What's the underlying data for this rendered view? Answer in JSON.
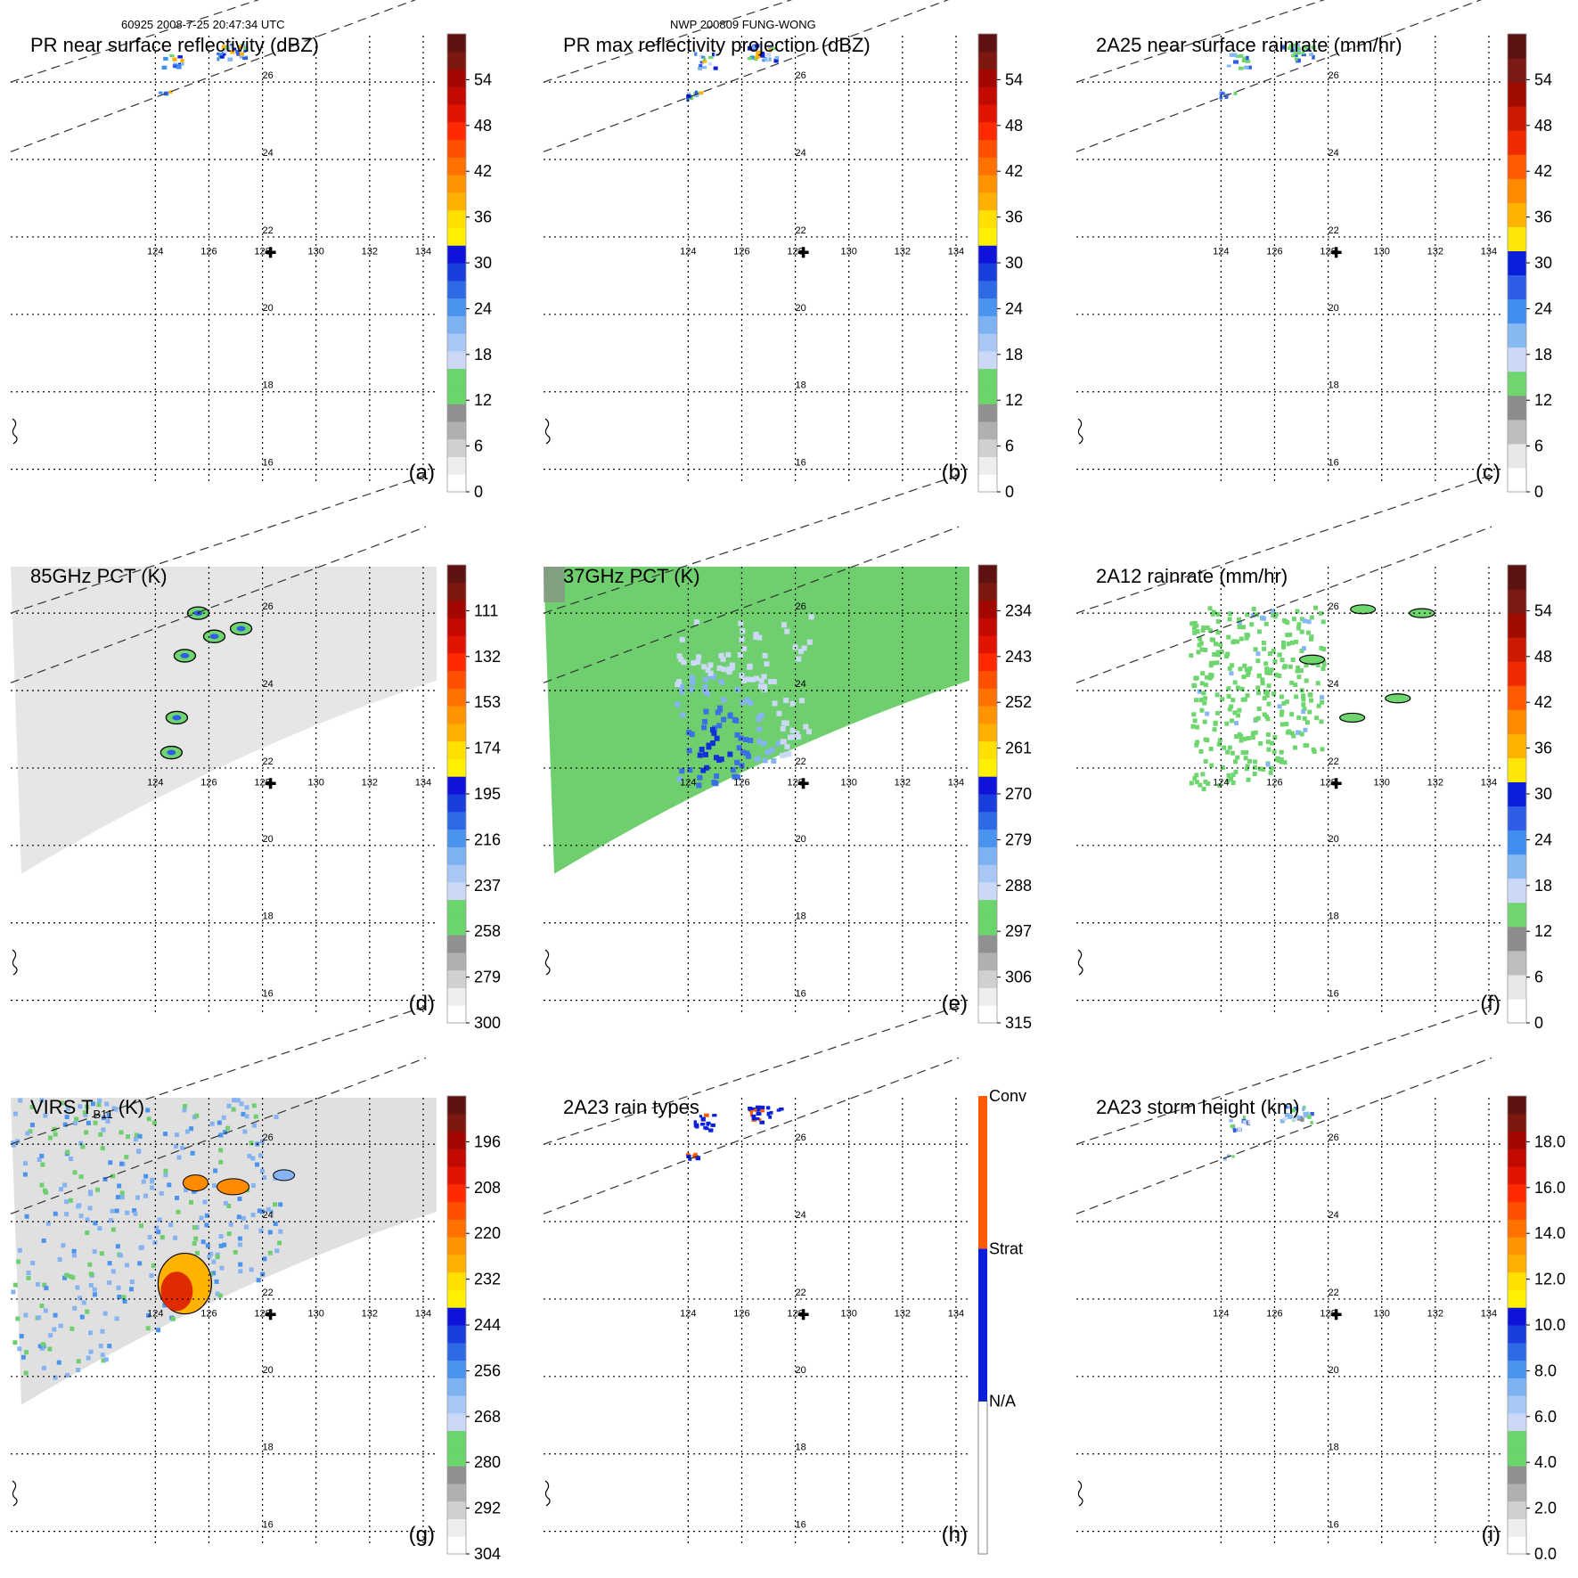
{
  "header": {
    "left": "60925 2008-7-25 20:47:34 UTC",
    "center": "NWP 200809 FUNG-WONG"
  },
  "map": {
    "lon_ticks": [
      "124",
      "126",
      "128",
      "130",
      "132",
      "134"
    ],
    "lat_ticks": [
      "26",
      "24",
      "22",
      "20",
      "18",
      "16"
    ]
  },
  "chart_data": [
    {
      "type": "heatmap",
      "panel": "(a)",
      "title": "PR near surface reflectivity (dBZ)",
      "colorbar": {
        "ticks": [
          "0",
          "6",
          "12",
          "18",
          "24",
          "30",
          "36",
          "42",
          "48",
          "54"
        ],
        "range": [
          0,
          60
        ],
        "unit": "dBZ"
      },
      "extent": {
        "lon": [
          118,
          134
        ],
        "lat": [
          16,
          27
        ]
      }
    },
    {
      "type": "heatmap",
      "panel": "(b)",
      "title": "PR max reflectivity projection (dBZ)",
      "colorbar": {
        "ticks": [
          "0",
          "6",
          "12",
          "18",
          "24",
          "30",
          "36",
          "42",
          "48",
          "54"
        ],
        "range": [
          0,
          60
        ],
        "unit": "dBZ"
      },
      "extent": {
        "lon": [
          118,
          134
        ],
        "lat": [
          16,
          27
        ]
      }
    },
    {
      "type": "heatmap",
      "panel": "(c)",
      "title": "2A25 near surface rainrate (mm/hr)",
      "colorbar": {
        "ticks": [
          "0",
          "6",
          "12",
          "18",
          "24",
          "30",
          "36",
          "42",
          "48",
          "54"
        ],
        "range": [
          0,
          60
        ],
        "unit": "mm/hr"
      },
      "extent": {
        "lon": [
          118,
          134
        ],
        "lat": [
          16,
          27
        ]
      }
    },
    {
      "type": "heatmap",
      "panel": "(d)",
      "title": "85GHz PCT (K)",
      "colorbar": {
        "ticks": [
          "300",
          "279",
          "258",
          "237",
          "216",
          "195",
          "174",
          "153",
          "132",
          "111"
        ],
        "range": [
          300,
          90
        ],
        "unit": "K"
      },
      "extent": {
        "lon": [
          118,
          134
        ],
        "lat": [
          16,
          27
        ]
      }
    },
    {
      "type": "heatmap",
      "panel": "(e)",
      "title": "37GHz PCT (K)",
      "colorbar": {
        "ticks": [
          "315",
          "306",
          "297",
          "288",
          "279",
          "270",
          "261",
          "252",
          "243",
          "234"
        ],
        "range": [
          315,
          225
        ],
        "unit": "K"
      },
      "extent": {
        "lon": [
          118,
          134
        ],
        "lat": [
          16,
          27
        ]
      }
    },
    {
      "type": "heatmap",
      "panel": "(f)",
      "title": "2A12 rainrate (mm/hr)",
      "colorbar": {
        "ticks": [
          "0",
          "6",
          "12",
          "18",
          "24",
          "30",
          "36",
          "42",
          "48",
          "54"
        ],
        "range": [
          0,
          60
        ],
        "unit": "mm/hr"
      },
      "extent": {
        "lon": [
          118,
          134
        ],
        "lat": [
          16,
          27
        ]
      }
    },
    {
      "type": "heatmap",
      "panel": "(g)",
      "title": "VIRS T",
      "title_sub": "B11",
      "title_unit": " (K)",
      "colorbar": {
        "ticks": [
          "304",
          "292",
          "280",
          "268",
          "256",
          "244",
          "232",
          "220",
          "208",
          "196"
        ],
        "range": [
          304,
          184
        ],
        "unit": "K"
      },
      "extent": {
        "lon": [
          118,
          134
        ],
        "lat": [
          16,
          27
        ]
      }
    },
    {
      "type": "heatmap",
      "panel": "(h)",
      "title": "2A23 rain types",
      "colorbar": {
        "categories": [
          "N/A",
          "Strat",
          "Conv"
        ]
      },
      "extent": {
        "lon": [
          118,
          134
        ],
        "lat": [
          16,
          27
        ]
      }
    },
    {
      "type": "heatmap",
      "panel": "(i)",
      "title": "2A23 storm height (km)",
      "colorbar": {
        "ticks": [
          "0.0",
          "2.0",
          "4.0",
          "6.0",
          "8.0",
          "10.0",
          "12.0",
          "14.0",
          "16.0",
          "18.0"
        ],
        "range": [
          0,
          20
        ],
        "unit": "km"
      },
      "extent": {
        "lon": [
          118,
          134
        ],
        "lat": [
          16,
          27
        ]
      }
    }
  ]
}
